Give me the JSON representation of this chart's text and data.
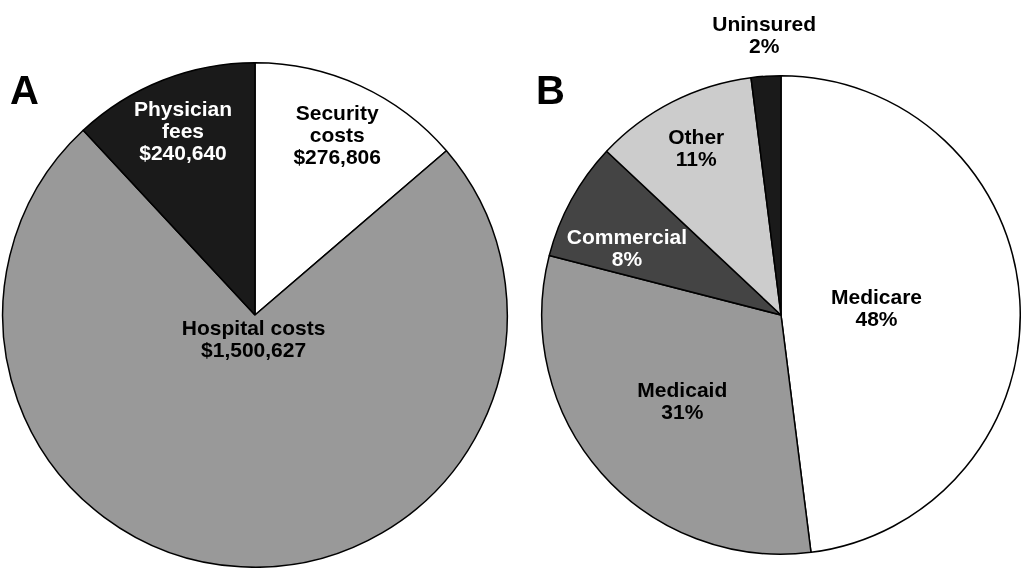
{
  "chart_data": [
    {
      "type": "pie",
      "title": "A",
      "categories": [
        "Security costs",
        "Hospital costs",
        "Physician fees"
      ],
      "values": [
        276806,
        1500627,
        240640
      ],
      "colors": [
        "#ffffff",
        "#999999",
        "#1a1a1a"
      ],
      "value_labels": [
        "$276,806",
        "$1,500,627",
        "$240,640"
      ],
      "legend": false
    },
    {
      "type": "pie",
      "title": "B",
      "categories": [
        "Medicare",
        "Medicaid",
        "Commercial",
        "Other",
        "Uninsured"
      ],
      "values": [
        48,
        31,
        8,
        11,
        2
      ],
      "colors": [
        "#ffffff",
        "#999999",
        "#444444",
        "#cccccc",
        "#1a1a1a"
      ],
      "value_labels": [
        "48%",
        "31%",
        "8%",
        "11%",
        "2%"
      ],
      "legend": false
    }
  ]
}
